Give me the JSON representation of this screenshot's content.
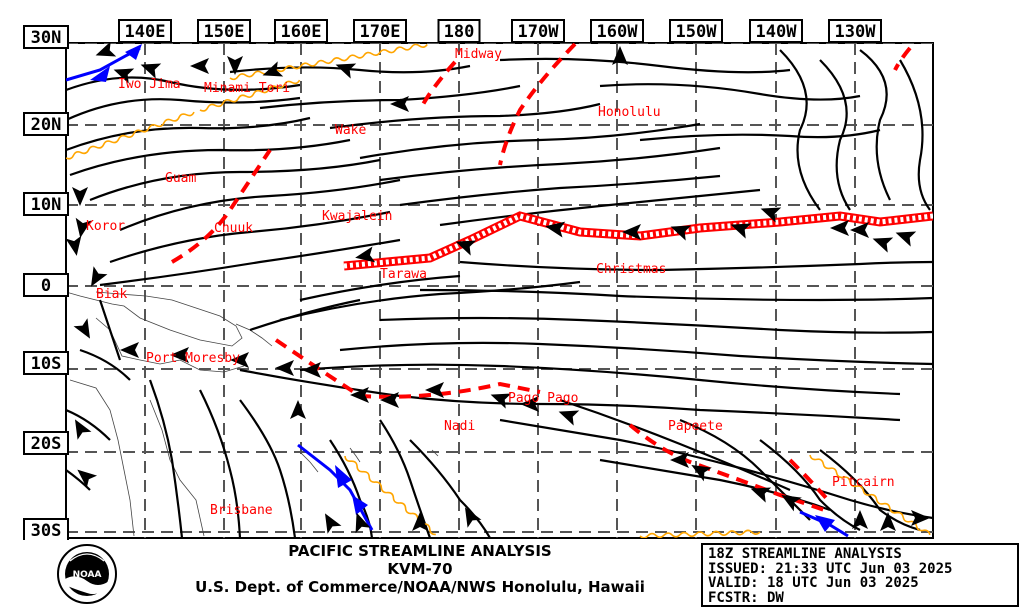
{
  "map": {
    "lat_labels": [
      "30N",
      "20N",
      "10N",
      "0",
      "10S",
      "20S",
      "30S"
    ],
    "lon_labels": [
      "140E",
      "150E",
      "160E",
      "170E",
      "180",
      "170W",
      "160W",
      "150W",
      "140W",
      "130W"
    ],
    "places": [
      "Iwo Jima",
      "Minami Tori",
      "Midway",
      "Wake",
      "Honolulu",
      "Guam",
      "Koror",
      "Chuuk",
      "Kwajalein",
      "Tarawa",
      "Christmas",
      "Biak",
      "Port Moresby",
      "Nadi",
      "Pago Pago",
      "Papeete",
      "Pitcairn",
      "Brisbane"
    ],
    "colors": {
      "streamline": "#000000",
      "trough": "#ff0000",
      "itcz": "#ff0000",
      "shear_line": "#ffa500",
      "front": "#0000ff",
      "label": "#ff0000",
      "grid": "#555555"
    }
  },
  "footer": {
    "title": "PACIFIC STREAMLINE ANALYSIS",
    "station": "KVM-70",
    "agency": "U.S. Dept. of Commerce/NOAA/NWS Honolulu, Hawaii",
    "logo_text": "NOAA"
  },
  "info": {
    "line1": "18Z STREAMLINE ANALYSIS",
    "line2": "ISSUED: 21:33 UTC Jun 03 2025",
    "line3": "VALID: 18 UTC Jun 03 2025",
    "line4": "FCSTR: DW"
  }
}
